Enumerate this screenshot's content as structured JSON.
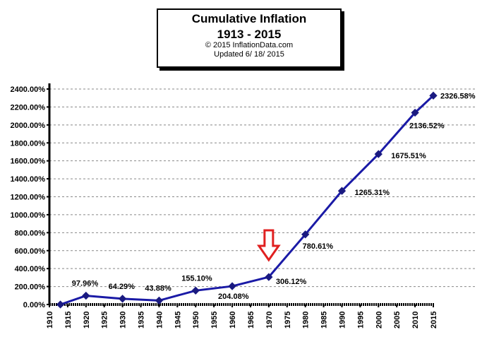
{
  "chart_data": {
    "type": "line",
    "title": "Cumulative Inflation",
    "subtitle": "1913 - 2015",
    "copyright": "© 2015 InflationData.com",
    "updated": "Updated   6/ 18/ 2015",
    "x": [
      1913,
      1920,
      1930,
      1940,
      1950,
      1960,
      1970,
      1980,
      1990,
      2000,
      2010,
      2015
    ],
    "values": [
      0,
      97.96,
      64.29,
      43.88,
      155.1,
      204.08,
      306.12,
      780.61,
      1265.31,
      1675.51,
      2136.52,
      2326.58
    ],
    "data_labels": [
      "",
      "97.96%",
      "64.29%",
      "43.88%",
      "155.10%",
      "204.08%",
      "306.12%",
      "780.61%",
      "1265.31%",
      "1675.51%",
      "2136.52%",
      "2326.58%"
    ],
    "xlim": [
      1910,
      2015
    ],
    "ylim": [
      0,
      2400
    ],
    "x_ticks": [
      "1910",
      "1915",
      "1920",
      "1925",
      "1930",
      "1935",
      "1940",
      "1945",
      "1950",
      "1955",
      "1960",
      "1965",
      "1970",
      "1975",
      "1980",
      "1985",
      "1990",
      "1995",
      "2000",
      "2005",
      "2010",
      "2015"
    ],
    "y_ticks": [
      "0.00%",
      "200.00%",
      "400.00%",
      "600.00%",
      "800.00%",
      "1000.00%",
      "1200.00%",
      "1400.00%",
      "1600.00%",
      "1800.00%",
      "2000.00%",
      "2200.00%",
      "2400.00%"
    ],
    "grid": "horizontal dashed",
    "line_color": "#1a1aa6",
    "annotation": {
      "type": "down-arrow",
      "at_x": 1970,
      "color": "#e02020"
    }
  }
}
